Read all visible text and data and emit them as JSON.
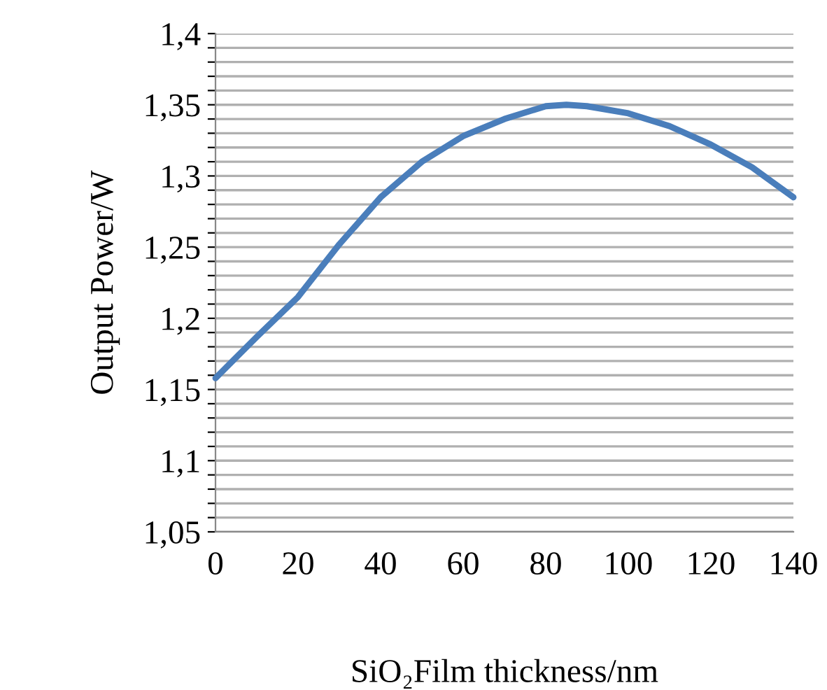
{
  "chart_data": {
    "type": "line",
    "xlabel": "SiO₂Film thickness/nm",
    "ylabel": "Output Power/W",
    "series": [
      {
        "color": "#4a7ebb",
        "x": [
          0,
          10,
          20,
          30,
          40,
          50,
          60,
          70,
          80,
          85,
          90,
          100,
          110,
          120,
          130,
          140
        ],
        "values": [
          1.158,
          1.187,
          1.215,
          1.252,
          1.285,
          1.31,
          1.328,
          1.34,
          1.349,
          1.35,
          1.349,
          1.344,
          1.335,
          1.322,
          1.306,
          1.285
        ]
      }
    ],
    "xlim": [
      0,
      140
    ],
    "xticks": [
      0,
      20,
      40,
      60,
      80,
      100,
      120,
      140
    ],
    "ylim": [
      1.05,
      1.4
    ],
    "yticks": [
      {
        "value": 1.05,
        "label": "1,05"
      },
      {
        "value": 1.06,
        "label": null
      },
      {
        "value": 1.07,
        "label": null
      },
      {
        "value": 1.08,
        "label": null
      },
      {
        "value": 1.09,
        "label": null
      },
      {
        "value": 1.1,
        "label": "1,1"
      },
      {
        "value": 1.11,
        "label": null
      },
      {
        "value": 1.12,
        "label": null
      },
      {
        "value": 1.13,
        "label": null
      },
      {
        "value": 1.14,
        "label": null
      },
      {
        "value": 1.15,
        "label": "1,15"
      },
      {
        "value": 1.16,
        "label": null
      },
      {
        "value": 1.17,
        "label": null
      },
      {
        "value": 1.18,
        "label": null
      },
      {
        "value": 1.19,
        "label": null
      },
      {
        "value": 1.2,
        "label": "1,2"
      },
      {
        "value": 1.21,
        "label": null
      },
      {
        "value": 1.22,
        "label": null
      },
      {
        "value": 1.23,
        "label": null
      },
      {
        "value": 1.24,
        "label": null
      },
      {
        "value": 1.25,
        "label": "1,25"
      },
      {
        "value": 1.26,
        "label": null
      },
      {
        "value": 1.27,
        "label": null
      },
      {
        "value": 1.28,
        "label": null
      },
      {
        "value": 1.29,
        "label": null
      },
      {
        "value": 1.3,
        "label": "1,3"
      },
      {
        "value": 1.31,
        "label": null
      },
      {
        "value": 1.32,
        "label": null
      },
      {
        "value": 1.33,
        "label": null
      },
      {
        "value": 1.34,
        "label": null
      },
      {
        "value": 1.35,
        "label": "1,35"
      },
      {
        "value": 1.36,
        "label": null
      },
      {
        "value": 1.37,
        "label": null
      },
      {
        "value": 1.38,
        "label": null
      },
      {
        "value": 1.39,
        "label": null
      },
      {
        "value": 1.4,
        "label": "1,4"
      }
    ],
    "grid": "y",
    "marker": "none",
    "line_style": "solid"
  }
}
